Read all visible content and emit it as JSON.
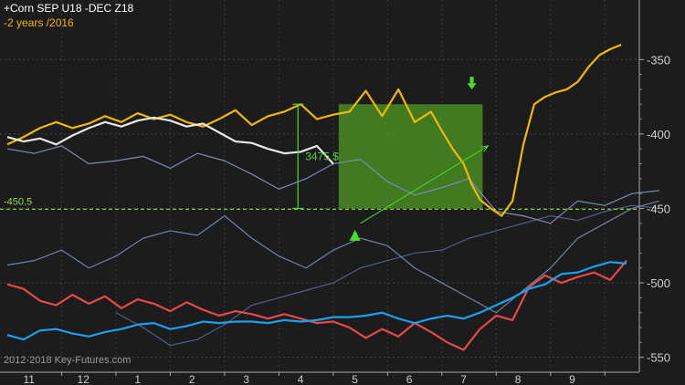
{
  "chart_data": {
    "type": "line",
    "title": "",
    "legend": [
      {
        "label": "+Corn SEP U18 -DEC Z18",
        "color": "#ffffff"
      },
      {
        "label": "-2 years /2016",
        "color": "#f2b705"
      }
    ],
    "watermark": "2012-2018 Key-Futures.com",
    "x_tick_labels": [
      "11",
      "12",
      "1",
      "2",
      "3",
      "4",
      "5",
      "6",
      "7",
      "8",
      "9"
    ],
    "y_ticks": [
      -350,
      -400,
      -450,
      -500,
      -550
    ],
    "y_tick_labels": [
      "-350",
      "-400",
      "-450",
      "-500",
      "-550"
    ],
    "ylim": [
      -560,
      -310
    ],
    "grid": true,
    "reference_line": {
      "value": -450.5,
      "label": "-450.5",
      "color": "#8edc3a"
    },
    "measure_annotation": {
      "label": "3475 $",
      "from": -380,
      "to": -450,
      "color": "#58d23c"
    },
    "highlight_zone": {
      "x_from": 6.6,
      "x_to": 9.25,
      "y_from": -450,
      "y_to": -380,
      "color": "#4f9a24"
    },
    "markers": [
      {
        "type": "up-arrow",
        "x": 6.55,
        "y": -457,
        "color": "#45e02a"
      },
      {
        "type": "down-arrow",
        "x": 8.7,
        "y": -375,
        "color": "#45e02a"
      }
    ],
    "trend_arrow": {
      "x_from": 6.65,
      "y_from": -460,
      "x_to": 9.0,
      "y_to": -408,
      "color": "#45e02a"
    },
    "series": [
      {
        "name": "+Corn SEP U18 -DEC Z18",
        "color": "#e8e8e8",
        "x": [
          10.0,
          10.3,
          10.6,
          10.9,
          11.2,
          11.5,
          11.8,
          12.1,
          12.4,
          12.7,
          13.0,
          13.3,
          13.6,
          13.9,
          14.2,
          14.5,
          14.8,
          15.1,
          15.4,
          15.7,
          15.9,
          16.0
        ],
        "y": [
          -402,
          -405,
          -403,
          -407,
          -401,
          -396,
          -392,
          -395,
          -391,
          -389,
          -391,
          -395,
          -393,
          -399,
          -405,
          -406,
          -410,
          -413,
          -412,
          -408,
          -416,
          -420
        ]
      },
      {
        "name": "-2 years /2016",
        "color": "#f2b705",
        "x": [
          10.0,
          10.3,
          10.6,
          10.9,
          11.2,
          11.5,
          11.8,
          12.1,
          12.4,
          12.7,
          13.0,
          13.3,
          13.6,
          13.9,
          14.2,
          14.5,
          14.8,
          15.1,
          15.4,
          15.7,
          16.0,
          16.3,
          16.6,
          16.9,
          17.2,
          17.5,
          17.8,
          18.0,
          18.2,
          18.4,
          18.55,
          18.7,
          18.9,
          19.1,
          19.3,
          19.5,
          19.7,
          19.9,
          20.1,
          20.3,
          20.5,
          20.7,
          20.9,
          21.1,
          21.3
        ],
        "y": [
          -407,
          -402,
          -396,
          -392,
          -396,
          -393,
          -388,
          -392,
          -386,
          -390,
          -387,
          -392,
          -395,
          -390,
          -384,
          -394,
          -388,
          -385,
          -380,
          -390,
          -387,
          -385,
          -371,
          -388,
          -370,
          -392,
          -385,
          -398,
          -410,
          -420,
          -434,
          -444,
          -450,
          -455,
          -445,
          -407,
          -380,
          -375,
          -372,
          -370,
          -365,
          -355,
          -347,
          -343,
          -340
        ]
      },
      {
        "name": "",
        "color": "#7a8cb0",
        "x": [
          10.0,
          10.5,
          11.0,
          11.5,
          12.0,
          12.5,
          13.0,
          13.5,
          14.0,
          14.5,
          15.0,
          15.5,
          16.0,
          16.5,
          17.0,
          17.5,
          18.0,
          18.5,
          19.0,
          19.5,
          20.0,
          20.5,
          21.0,
          21.5,
          22.0
        ],
        "y": [
          -410,
          -413,
          -408,
          -420,
          -418,
          -415,
          -423,
          -413,
          -418,
          -427,
          -437,
          -430,
          -420,
          -417,
          -432,
          -441,
          -436,
          -430,
          -452,
          -455,
          -460,
          -445,
          -448,
          -440,
          -438
        ]
      },
      {
        "name": "",
        "color": "#6f84aa",
        "x": [
          10.0,
          10.5,
          11.0,
          11.5,
          12.0,
          12.5,
          13.0,
          13.5,
          14.0,
          14.5,
          15.0,
          15.5,
          16.0,
          16.5,
          17.0,
          17.5,
          18.0,
          18.5,
          19.0,
          19.5,
          20.0,
          20.5,
          21.0,
          21.5,
          22.0
        ],
        "y": [
          -488,
          -485,
          -478,
          -490,
          -482,
          -470,
          -465,
          -468,
          -455,
          -470,
          -482,
          -490,
          -478,
          -470,
          -475,
          -490,
          -500,
          -510,
          -520,
          -505,
          -490,
          -470,
          -460,
          -450,
          -445
        ]
      },
      {
        "name": "",
        "color": "#4f5f86",
        "x": [
          12.0,
          12.5,
          13.0,
          13.5,
          14.0,
          14.5,
          15.0,
          15.5,
          16.0,
          16.5,
          17.0,
          17.5,
          18.0,
          18.5,
          19.0,
          19.5,
          20.0,
          20.5,
          21.0,
          21.5,
          22.0
        ],
        "y": [
          -520,
          -530,
          -542,
          -538,
          -528,
          -515,
          -510,
          -505,
          -500,
          -490,
          -485,
          -480,
          -478,
          -470,
          -465,
          -460,
          -455,
          -458,
          -452,
          -448,
          -450
        ]
      },
      {
        "name": "",
        "color": "#e84848",
        "x": [
          10.0,
          10.3,
          10.6,
          10.9,
          11.2,
          11.5,
          11.8,
          12.1,
          12.4,
          12.7,
          13.0,
          13.3,
          13.6,
          13.9,
          14.2,
          14.5,
          14.8,
          15.1,
          15.4,
          15.7,
          16.0,
          16.3,
          16.6,
          16.9,
          17.2,
          17.5,
          17.8,
          18.1,
          18.4,
          18.7,
          19.0,
          19.3,
          19.6,
          19.9,
          20.2,
          20.5,
          20.8,
          21.1,
          21.4
        ],
        "y": [
          -501,
          -504,
          -512,
          -515,
          -508,
          -514,
          -509,
          -517,
          -511,
          -514,
          -519,
          -513,
          -518,
          -522,
          -519,
          -521,
          -524,
          -521,
          -524,
          -527,
          -526,
          -530,
          -537,
          -531,
          -536,
          -527,
          -533,
          -540,
          -545,
          -531,
          -522,
          -525,
          -503,
          -495,
          -500,
          -496,
          -493,
          -498,
          -485
        ]
      },
      {
        "name": "",
        "color": "#1aa0f0",
        "x": [
          10.0,
          10.3,
          10.6,
          10.9,
          11.2,
          11.5,
          11.8,
          12.1,
          12.4,
          12.7,
          13.0,
          13.3,
          13.6,
          13.9,
          14.2,
          14.5,
          14.8,
          15.1,
          15.4,
          15.7,
          16.0,
          16.3,
          16.6,
          16.9,
          17.2,
          17.5,
          17.8,
          18.1,
          18.4,
          18.7,
          19.0,
          19.3,
          19.6,
          19.9,
          20.2,
          20.5,
          20.8,
          21.1,
          21.4
        ],
        "y": [
          -535,
          -538,
          -532,
          -531,
          -534,
          -536,
          -533,
          -531,
          -528,
          -527,
          -531,
          -529,
          -526,
          -527,
          -526,
          -526,
          -527,
          -525,
          -526,
          -525,
          -523,
          -523,
          -522,
          -520,
          -524,
          -527,
          -524,
          -522,
          -524,
          -520,
          -515,
          -510,
          -504,
          -501,
          -494,
          -493,
          -489,
          -486,
          -487
        ]
      }
    ]
  }
}
